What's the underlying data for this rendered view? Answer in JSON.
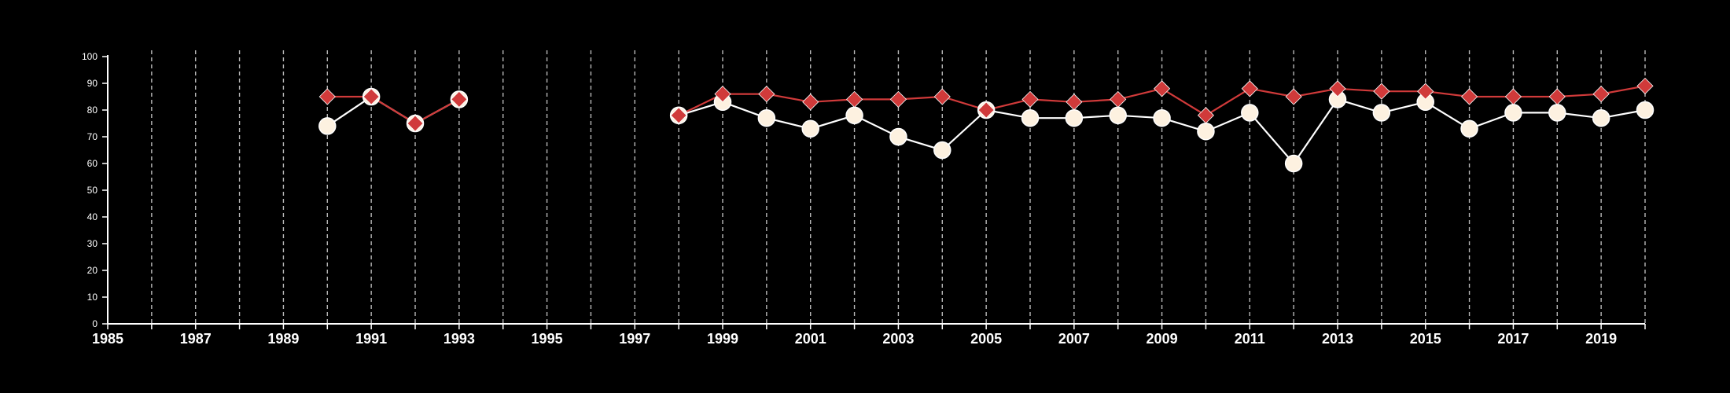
{
  "chart_data": {
    "type": "line",
    "title": "",
    "xlabel": "",
    "ylabel": "",
    "xlim": [
      1985,
      2020
    ],
    "ylim": [
      0,
      100
    ],
    "x_ticks": [
      1985,
      1987,
      1989,
      1991,
      1993,
      1995,
      1997,
      1999,
      2001,
      2003,
      2005,
      2007,
      2009,
      2011,
      2013,
      2015,
      2017,
      2019
    ],
    "y_ticks": [
      0,
      10,
      20,
      30,
      40,
      50,
      60,
      70,
      80,
      90,
      100
    ],
    "grid": {
      "vertical": true,
      "horizontal": false,
      "every_year": true
    },
    "background": "#000000",
    "series": [
      {
        "marker": "diamond",
        "color": "#d03a3a",
        "marker_edge": "#ffffff",
        "points": [
          [
            1990,
            85
          ],
          [
            1991,
            85
          ],
          [
            1992,
            75
          ],
          [
            1993,
            84
          ],
          [
            1998,
            78
          ],
          [
            1999,
            86
          ],
          [
            2000,
            86
          ],
          [
            2001,
            83
          ],
          [
            2002,
            84
          ],
          [
            2003,
            84
          ],
          [
            2004,
            85
          ],
          [
            2005,
            80
          ],
          [
            2006,
            84
          ],
          [
            2007,
            83
          ],
          [
            2008,
            84
          ],
          [
            2009,
            88
          ],
          [
            2010,
            78
          ],
          [
            2011,
            88
          ],
          [
            2012,
            85
          ],
          [
            2013,
            88
          ],
          [
            2014,
            87
          ],
          [
            2015,
            87
          ],
          [
            2016,
            85
          ],
          [
            2017,
            85
          ],
          [
            2018,
            85
          ],
          [
            2019,
            86
          ],
          [
            2020,
            89
          ]
        ]
      },
      {
        "marker": "circle",
        "color": "#fdf1e0",
        "line_color": "#ffffff",
        "points": [
          [
            1990,
            74
          ],
          [
            1991,
            85
          ],
          [
            1992,
            75
          ],
          [
            1993,
            84
          ],
          [
            1998,
            78
          ],
          [
            1999,
            83
          ],
          [
            2000,
            77
          ],
          [
            2001,
            73
          ],
          [
            2002,
            78
          ],
          [
            2003,
            70
          ],
          [
            2004,
            65
          ],
          [
            2005,
            80
          ],
          [
            2006,
            77
          ],
          [
            2007,
            77
          ],
          [
            2008,
            78
          ],
          [
            2009,
            77
          ],
          [
            2010,
            72
          ],
          [
            2011,
            79
          ],
          [
            2012,
            60
          ],
          [
            2013,
            84
          ],
          [
            2014,
            79
          ],
          [
            2015,
            83
          ],
          [
            2016,
            73
          ],
          [
            2017,
            79
          ],
          [
            2018,
            79
          ],
          [
            2019,
            77
          ],
          [
            2020,
            80
          ]
        ]
      }
    ]
  }
}
